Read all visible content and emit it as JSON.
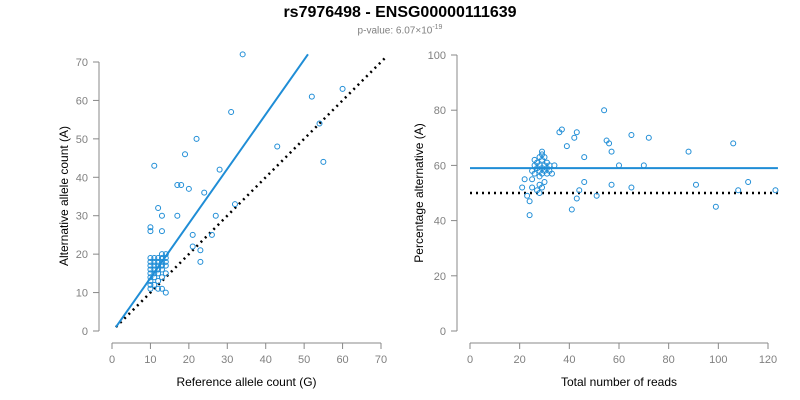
{
  "figure": {
    "title": "rs7976498 - ENSG00000111639",
    "pvalue_prefix": "p-value: 6.07×10",
    "pvalue_exponent": "-19"
  },
  "chart_data": [
    {
      "type": "scatter",
      "name": "allele-count-panel",
      "xlabel": "Reference allele count (G)",
      "ylabel": "Alternative allele count (A)",
      "xlim": [
        0,
        70
      ],
      "ylim": [
        0,
        70
      ],
      "xticks": [
        0,
        10,
        20,
        30,
        40,
        50,
        60,
        70
      ],
      "yticks": [
        0,
        10,
        20,
        30,
        40,
        50,
        60,
        70
      ],
      "point_color": "#1f8dd6",
      "points": [
        [
          10,
          11
        ],
        [
          10,
          12
        ],
        [
          10,
          13
        ],
        [
          10,
          14
        ],
        [
          10,
          15
        ],
        [
          10,
          16
        ],
        [
          10,
          17
        ],
        [
          10,
          18
        ],
        [
          10,
          19
        ],
        [
          10,
          26
        ],
        [
          10,
          27
        ],
        [
          11,
          12
        ],
        [
          11,
          14
        ],
        [
          11,
          15
        ],
        [
          11,
          16
        ],
        [
          11,
          17
        ],
        [
          11,
          18
        ],
        [
          11,
          19
        ],
        [
          11,
          43
        ],
        [
          12,
          11
        ],
        [
          12,
          13
        ],
        [
          12,
          15
        ],
        [
          12,
          16
        ],
        [
          12,
          17
        ],
        [
          12,
          18
        ],
        [
          12,
          19
        ],
        [
          12,
          32
        ],
        [
          13,
          11
        ],
        [
          13,
          14
        ],
        [
          13,
          16
        ],
        [
          13,
          17
        ],
        [
          13,
          18
        ],
        [
          13,
          19
        ],
        [
          13,
          20
        ],
        [
          13,
          26
        ],
        [
          13,
          30
        ],
        [
          14,
          10
        ],
        [
          14,
          15
        ],
        [
          14,
          17
        ],
        [
          14,
          18
        ],
        [
          14,
          19
        ],
        [
          14,
          20
        ],
        [
          17,
          30
        ],
        [
          17,
          38
        ],
        [
          18,
          38
        ],
        [
          19,
          46
        ],
        [
          20,
          37
        ],
        [
          21,
          22
        ],
        [
          21,
          25
        ],
        [
          22,
          50
        ],
        [
          23,
          18
        ],
        [
          23,
          21
        ],
        [
          24,
          36
        ],
        [
          26,
          25
        ],
        [
          27,
          30
        ],
        [
          28,
          42
        ],
        [
          31,
          57
        ],
        [
          32,
          33
        ],
        [
          34,
          72
        ],
        [
          43,
          48
        ],
        [
          52,
          61
        ],
        [
          54,
          54
        ],
        [
          55,
          44
        ],
        [
          60,
          63
        ]
      ],
      "fit_line": {
        "x": [
          1,
          51
        ],
        "y": [
          1,
          72
        ],
        "color": "#1f8dd6"
      },
      "reference_line": {
        "x": [
          1,
          71
        ],
        "y": [
          1,
          71
        ],
        "style": "dotted",
        "color": "#000000"
      }
    },
    {
      "type": "scatter",
      "name": "percentage-panel",
      "xlabel": "Total number of reads",
      "ylabel": "Percentage alternative (A)",
      "xlim": [
        0,
        120
      ],
      "ylim": [
        0,
        100
      ],
      "xticks": [
        0,
        20,
        40,
        60,
        80,
        100,
        120
      ],
      "yticks": [
        0,
        20,
        40,
        60,
        80,
        100
      ],
      "point_color": "#1f8dd6",
      "points": [
        [
          21,
          52
        ],
        [
          22,
          55
        ],
        [
          23,
          49
        ],
        [
          24,
          42
        ],
        [
          24,
          47
        ],
        [
          25,
          52
        ],
        [
          25,
          55
        ],
        [
          25,
          58
        ],
        [
          26,
          57
        ],
        [
          26,
          60
        ],
        [
          26,
          62
        ],
        [
          27,
          51
        ],
        [
          27,
          59
        ],
        [
          27,
          61
        ],
        [
          28,
          50
        ],
        [
          28,
          53
        ],
        [
          28,
          56
        ],
        [
          28,
          58
        ],
        [
          28,
          60
        ],
        [
          28,
          63
        ],
        [
          29,
          52
        ],
        [
          29,
          57
        ],
        [
          29,
          59
        ],
        [
          29,
          62
        ],
        [
          29,
          64
        ],
        [
          29,
          65
        ],
        [
          30,
          54
        ],
        [
          30,
          58
        ],
        [
          30,
          60
        ],
        [
          30,
          63
        ],
        [
          31,
          57
        ],
        [
          31,
          59
        ],
        [
          31,
          61
        ],
        [
          32,
          58
        ],
        [
          32,
          60
        ],
        [
          33,
          57
        ],
        [
          34,
          60
        ],
        [
          36,
          72
        ],
        [
          37,
          73
        ],
        [
          39,
          67
        ],
        [
          41,
          44
        ],
        [
          42,
          70
        ],
        [
          43,
          72
        ],
        [
          43,
          48
        ],
        [
          44,
          51
        ],
        [
          46,
          54
        ],
        [
          46,
          63
        ],
        [
          51,
          49
        ],
        [
          54,
          80
        ],
        [
          55,
          69
        ],
        [
          56,
          68
        ],
        [
          57,
          53
        ],
        [
          57,
          65
        ],
        [
          60,
          60
        ],
        [
          65,
          52
        ],
        [
          65,
          71
        ],
        [
          70,
          60
        ],
        [
          72,
          70
        ],
        [
          88,
          65
        ],
        [
          91,
          53
        ],
        [
          99,
          45
        ],
        [
          106,
          68
        ],
        [
          108,
          51
        ],
        [
          112,
          54
        ],
        [
          123,
          51
        ]
      ],
      "fit_line": {
        "x": [
          0,
          124
        ],
        "y": [
          59,
          59
        ],
        "color": "#1f8dd6"
      },
      "reference_line": {
        "x": [
          0,
          124
        ],
        "y": [
          50,
          50
        ],
        "style": "dotted",
        "color": "#000000"
      }
    }
  ]
}
